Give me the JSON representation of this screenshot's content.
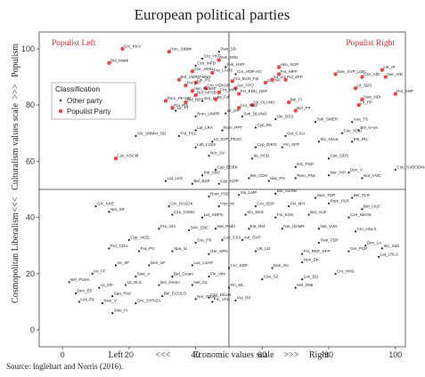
{
  "chart_data": {
    "type": "scatter",
    "title": "European political parties",
    "xlabel": {
      "left": "Left",
      "arrows_left": "<<<",
      "center": "Economic values scale",
      "arrows_right": ">>>",
      "right": "Right"
    },
    "ylabel": {
      "bottom": "Cosmopolitan Liberalism",
      "arrows_bottom": "<<<",
      "center": "Culturalism values scale",
      "arrows_top": ">>>",
      "top": "Populism"
    },
    "xlim": [
      -7,
      103
    ],
    "ylim": [
      -6,
      106
    ],
    "xticks": [
      0,
      20,
      40,
      60,
      80,
      100
    ],
    "yticks": [
      0,
      20,
      40,
      60,
      80,
      100
    ],
    "reference_lines": {
      "x": 50,
      "y": 50
    },
    "grid": false,
    "corner_labels": {
      "top_left": "Populist Left",
      "top_right": "Populist Right"
    },
    "legend": {
      "title": "Classification",
      "position": "upper-left",
      "entries": [
        "Other party",
        "Populist Party"
      ]
    },
    "colors": {
      "populist": "#e8464e",
      "other": "#222222",
      "corner_text": "#e0202a"
    },
    "source": "Source: Inglehart and Norris (2016).",
    "points": [
      {
        "x": 18,
        "y": 100,
        "label": "Grc_KKA",
        "populist": true
      },
      {
        "x": 14,
        "y": 95,
        "label": "Bel_Makk",
        "populist": true
      },
      {
        "x": 32,
        "y": 99,
        "label": "Hun_Jobbik",
        "populist": true
      },
      {
        "x": 47,
        "y": 99,
        "label": "Swe_SD",
        "populist": false
      },
      {
        "x": 42,
        "y": 96.5,
        "label": "Cro_HSS",
        "populist": false
      },
      {
        "x": 47,
        "y": 96,
        "label": "Svk_SNS",
        "populist": true
      },
      {
        "x": 40,
        "y": 94,
        "label": "Cze_MPD",
        "populist": false
      },
      {
        "x": 49,
        "y": 93.5,
        "label": "Svk_HSP",
        "populist": false
      },
      {
        "x": 39,
        "y": 92,
        "label": "Cze_ANEL",
        "populist": true
      },
      {
        "x": 45,
        "y": 91.5,
        "label": "Fra_LAOS",
        "populist": true
      },
      {
        "x": 35,
        "y": 89,
        "label": "Bel_VMRO-BND",
        "populist": true
      },
      {
        "x": 40,
        "y": 88,
        "label": "Fin_PS",
        "populist": true
      },
      {
        "x": 52,
        "y": 91,
        "label": "Cro_HDP-AG",
        "populist": false
      },
      {
        "x": 51,
        "y": 88.5,
        "label": "Fra_fnLR_FdI",
        "populist": true
      },
      {
        "x": 37,
        "y": 87,
        "label": "Pol_KP",
        "populist": true
      },
      {
        "x": 43,
        "y": 86,
        "label": "Cro_HDSSB",
        "populist": true
      },
      {
        "x": 61,
        "y": 88,
        "label": "Lat_NA",
        "populist": true
      },
      {
        "x": 52,
        "y": 86,
        "label": "Aut_FPO",
        "populist": true
      },
      {
        "x": 65,
        "y": 93.5,
        "label": "Hun_SGP",
        "populist": true
      },
      {
        "x": 65,
        "y": 91,
        "label": "Fra_MPF",
        "populist": true
      },
      {
        "x": 63,
        "y": 89,
        "label": "Ita_LN",
        "populist": true
      },
      {
        "x": 39,
        "y": 85,
        "label": "Hun_Fidesz",
        "populist": true
      },
      {
        "x": 40,
        "y": 83.5,
        "label": "Bul_NFSB",
        "populist": true
      },
      {
        "x": 47,
        "y": 84.5,
        "label": "Fra_MPF",
        "populist": true
      },
      {
        "x": 53,
        "y": 84,
        "label": "Fin_EDU_UDF",
        "populist": true
      },
      {
        "x": 67,
        "y": 89,
        "label": "Pol_ZFP",
        "populist": true
      },
      {
        "x": 82,
        "y": 91,
        "label": "Swe_SVP_UDC",
        "populist": true
      },
      {
        "x": 90,
        "y": 90,
        "label": "Cze_AfD",
        "populist": true
      },
      {
        "x": 88,
        "y": 86,
        "label": "Lit_SDS",
        "populist": true
      },
      {
        "x": 96,
        "y": 92.5,
        "label": "UK_IP",
        "populist": true
      },
      {
        "x": 97,
        "y": 90,
        "label": "Ger_AfD",
        "populist": true
      },
      {
        "x": 100,
        "y": 84,
        "label": "Pol_KNP",
        "populist": true
      },
      {
        "x": 31,
        "y": 81.5,
        "label": "Rom_PP-DD",
        "populist": true
      },
      {
        "x": 37,
        "y": 81,
        "label": "Bul_BBT",
        "populist": true
      },
      {
        "x": 33,
        "y": 79,
        "label": "Pol_PiS",
        "populist": true
      },
      {
        "x": 42,
        "y": 81.5,
        "label": "Gre_DP",
        "populist": false
      },
      {
        "x": 46,
        "y": 82,
        "label": "Ita_FdI",
        "populist": true
      },
      {
        "x": 57,
        "y": 80,
        "label": "Sk_OLANO",
        "populist": true
      },
      {
        "x": 53,
        "y": 79,
        "label": "Cro_HDZ",
        "populist": true
      },
      {
        "x": 68,
        "y": 81,
        "label": "Bel_FI",
        "populist": true
      },
      {
        "x": 70,
        "y": 78,
        "label": "Bel_PP",
        "populist": true
      },
      {
        "x": 89,
        "y": 80,
        "label": "Lit_PP",
        "populist": true
      },
      {
        "x": 90,
        "y": 82,
        "label": "Swe_NDI",
        "populist": true
      },
      {
        "x": 34,
        "y": 78,
        "label": "Lit_TT",
        "populist": false
      },
      {
        "x": 40,
        "y": 76,
        "label": "Rom_UNPR",
        "populist": false
      },
      {
        "x": 49,
        "y": 77,
        "label": "Lit_DP",
        "populist": false
      },
      {
        "x": 54,
        "y": 76,
        "label": "Svk_DLANO",
        "populist": false
      },
      {
        "x": 64,
        "y": 75,
        "label": "Slo_DSS",
        "populist": false
      },
      {
        "x": 76,
        "y": 74,
        "label": "Svk_SMER",
        "populist": false
      },
      {
        "x": 87,
        "y": 74,
        "label": "Aus_TS",
        "populist": false
      },
      {
        "x": 84,
        "y": 70,
        "label": "Cze_KDU",
        "populist": false
      },
      {
        "x": 89,
        "y": 71,
        "label": "Bel_N-VA",
        "populist": false
      },
      {
        "x": 40,
        "y": 71,
        "label": "Lat_LRA",
        "populist": false
      },
      {
        "x": 48,
        "y": 71,
        "label": "Rom_PPT",
        "populist": false
      },
      {
        "x": 58,
        "y": 72,
        "label": "Cyp_EK",
        "populist": false
      },
      {
        "x": 22,
        "y": 69,
        "label": "Slo_SNMer_SD",
        "populist": false
      },
      {
        "x": 35,
        "y": 69,
        "label": "Pol_PSL",
        "populist": false
      },
      {
        "x": 45,
        "y": 67,
        "label": "Lit_SVP_PESC",
        "populist": false
      },
      {
        "x": 67,
        "y": 69,
        "label": "Ger_CSU",
        "populist": false
      },
      {
        "x": 77,
        "y": 67,
        "label": "Slo_Nova",
        "populist": false
      },
      {
        "x": 87,
        "y": 67,
        "label": "Est_IRL",
        "populist": false
      },
      {
        "x": 40,
        "y": 65,
        "label": "Lith_LVZS",
        "populist": false
      },
      {
        "x": 58,
        "y": 65,
        "label": "Cyp_DIKO",
        "populist": false
      },
      {
        "x": 66,
        "y": 65,
        "label": "Fin_SFP",
        "populist": false
      },
      {
        "x": 80,
        "y": 61,
        "label": "Cze_ODS",
        "populist": false
      },
      {
        "x": 16,
        "y": 61,
        "label": "Cze_KSCM",
        "populist": true
      },
      {
        "x": 44,
        "y": 62,
        "label": "Nor_SV",
        "populist": false
      },
      {
        "x": 57,
        "y": 61,
        "label": "Ita_NCD",
        "populist": false
      },
      {
        "x": 70,
        "y": 58,
        "label": "Est_PSD",
        "populist": false
      },
      {
        "x": 46,
        "y": 57,
        "label": "Cyp_EDEK",
        "populist": false
      },
      {
        "x": 42,
        "y": 55,
        "label": "Pol_ABV",
        "populist": false
      },
      {
        "x": 31,
        "y": 53,
        "label": "Lat_LKS",
        "populist": false
      },
      {
        "x": 39,
        "y": 52,
        "label": "Bel_BSP",
        "populist": false
      },
      {
        "x": 47,
        "y": 52,
        "label": "Cyp_KOP",
        "populist": false
      },
      {
        "x": 56,
        "y": 54,
        "label": "Bel_CDH",
        "populist": false
      },
      {
        "x": 62,
        "y": 53,
        "label": "Mal_PN",
        "populist": false
      },
      {
        "x": 70,
        "y": 54,
        "label": "Rom_PNL",
        "populist": false
      },
      {
        "x": 80,
        "y": 55,
        "label": "Nor_FrP",
        "populist": false
      },
      {
        "x": 86,
        "y": 56,
        "label": "Den_V",
        "populist": false
      },
      {
        "x": 90,
        "y": 54,
        "label": "Nor_VVD",
        "populist": false
      },
      {
        "x": 100,
        "y": 57,
        "label": "Cze_SVBODNI",
        "populist": false
      },
      {
        "x": 44,
        "y": 47.5,
        "label": "Rom_PSD",
        "populist": false
      },
      {
        "x": 53,
        "y": 48,
        "label": "Slo_LMP",
        "populist": false
      },
      {
        "x": 64,
        "y": 48.5,
        "label": "Bul_GERB",
        "populist": false
      },
      {
        "x": 76,
        "y": 47,
        "label": "Swe_TOP",
        "populist": false
      },
      {
        "x": 87,
        "y": 47,
        "label": "Bel_PLR",
        "populist": false
      },
      {
        "x": 10,
        "y": 44,
        "label": "Grc_KKE",
        "populist": false
      },
      {
        "x": 32,
        "y": 44,
        "label": "Grc_PASOK",
        "populist": false
      },
      {
        "x": 47,
        "y": 44,
        "label": "Hun_Nr",
        "populist": false
      },
      {
        "x": 58,
        "y": 44,
        "label": "Cro_SDP",
        "populist": false
      },
      {
        "x": 68,
        "y": 44,
        "label": "Fin_MH",
        "populist": false
      },
      {
        "x": 80,
        "y": 45,
        "label": "Rom_PLR",
        "populist": false
      },
      {
        "x": 90,
        "y": 43,
        "label": "Bel_OLD",
        "populist": false
      },
      {
        "x": 14,
        "y": 42,
        "label": "Net_SP",
        "populist": false
      },
      {
        "x": 33,
        "y": 41,
        "label": "Cze_CSSD",
        "populist": false
      },
      {
        "x": 42,
        "y": 40,
        "label": "Lat_SDPS",
        "populist": false
      },
      {
        "x": 55,
        "y": 41,
        "label": "Slo_SDS",
        "populist": false
      },
      {
        "x": 64,
        "y": 40,
        "label": "Fin_KOK",
        "populist": false
      },
      {
        "x": 74,
        "y": 41,
        "label": "Bel_VLD",
        "populist": false
      },
      {
        "x": 86,
        "y": 40,
        "label": "Cze_NEOS",
        "populist": false
      },
      {
        "x": 29,
        "y": 36,
        "label": "Fra_Grn",
        "populist": false
      },
      {
        "x": 38,
        "y": 35.5,
        "label": "SPA_EBC",
        "populist": false
      },
      {
        "x": 46,
        "y": 36,
        "label": "Net_PvdA",
        "populist": false
      },
      {
        "x": 56,
        "y": 36,
        "label": "Est_Ref",
        "populist": false
      },
      {
        "x": 66,
        "y": 36,
        "label": "Net_UDMR",
        "populist": false
      },
      {
        "x": 77,
        "y": 36,
        "label": "Net_VVD",
        "populist": false
      },
      {
        "x": 88,
        "y": 35,
        "label": "Cro_HSLS",
        "populist": false
      },
      {
        "x": 20,
        "y": 32,
        "label": "Cyp_AKEL",
        "populist": false
      },
      {
        "x": 40,
        "y": 31,
        "label": "Gre_PS",
        "populist": false
      },
      {
        "x": 48,
        "y": 32,
        "label": "Lux_CSV",
        "populist": false
      },
      {
        "x": 54,
        "y": 32,
        "label": "Aut_OVP",
        "populist": false
      },
      {
        "x": 77,
        "y": 31,
        "label": "Swe_FDP",
        "populist": false
      },
      {
        "x": 91,
        "y": 30,
        "label": "Den_LA",
        "populist": false
      },
      {
        "x": 96,
        "y": 29,
        "label": "Slo_SaS",
        "populist": false
      },
      {
        "x": 14,
        "y": 29,
        "label": "Por_CDU",
        "populist": false
      },
      {
        "x": 23,
        "y": 28,
        "label": "Fra_PG",
        "populist": false
      },
      {
        "x": 33,
        "y": 28,
        "label": "Spa_IU",
        "populist": false
      },
      {
        "x": 44,
        "y": 27,
        "label": "Ger_SPD",
        "populist": false
      },
      {
        "x": 58,
        "y": 28,
        "label": "UK_LD",
        "populist": false
      },
      {
        "x": 72,
        "y": 27,
        "label": "Fin_RKP_SFP",
        "populist": false
      },
      {
        "x": 86,
        "y": 28,
        "label": "Ger_FDP",
        "populist": false
      },
      {
        "x": 95,
        "y": 26,
        "label": "Lat_LRLS",
        "populist": false
      },
      {
        "x": 16,
        "y": 23,
        "label": "Ire_SF",
        "populist": false
      },
      {
        "x": 26,
        "y": 23,
        "label": "Den_SF",
        "populist": false
      },
      {
        "x": 39,
        "y": 23,
        "label": "Lux_LSAP",
        "populist": false
      },
      {
        "x": 50,
        "y": 22,
        "label": "Cro_SDP",
        "populist": false
      },
      {
        "x": 63,
        "y": 22,
        "label": "Den_RV",
        "populist": false
      },
      {
        "x": 72,
        "y": 24,
        "label": "Hun_DK",
        "populist": false
      },
      {
        "x": 9,
        "y": 20,
        "label": "Ire_FF",
        "populist": false
      },
      {
        "x": 22,
        "y": 19,
        "label": "Swe_V",
        "populist": false
      },
      {
        "x": 33,
        "y": 19,
        "label": "Bel_Groen",
        "populist": false
      },
      {
        "x": 44,
        "y": 19,
        "label": "Fin_Vihr",
        "populist": false
      },
      {
        "x": 60,
        "y": 18,
        "label": "Cze_SZ",
        "populist": false
      },
      {
        "x": 72,
        "y": 18,
        "label": "Lux_DG",
        "populist": false
      },
      {
        "x": 82,
        "y": 20,
        "label": "Cro_HNS",
        "populist": false
      },
      {
        "x": 2,
        "y": 17,
        "label": "Bel_PVDA",
        "populist": false
      },
      {
        "x": 11,
        "y": 15,
        "label": "Lit_DP",
        "populist": false
      },
      {
        "x": 19,
        "y": 16,
        "label": "Lit_SLS",
        "populist": false
      },
      {
        "x": 29,
        "y": 16,
        "label": "Bel_Green",
        "populist": false
      },
      {
        "x": 39,
        "y": 16,
        "label": "Net_GL",
        "populist": false
      },
      {
        "x": 50,
        "y": 15,
        "label": "Fin_ML",
        "populist": false
      },
      {
        "x": 70,
        "y": 15,
        "label": "Net_D66",
        "populist": false
      },
      {
        "x": 4,
        "y": 13,
        "label": "Den_Ell",
        "populist": false
      },
      {
        "x": 15,
        "y": 12,
        "label": "Spa_Pod",
        "populist": false
      },
      {
        "x": 30,
        "y": 12,
        "label": "Bel_ECOLO",
        "populist": false
      },
      {
        "x": 40,
        "y": 11,
        "label": "Nor_Grunn",
        "populist": false
      },
      {
        "x": 44,
        "y": 11.5,
        "label": "Cze_DKuH",
        "populist": false
      },
      {
        "x": 45,
        "y": 10,
        "label": "Fin_VAS",
        "populist": false
      },
      {
        "x": 5,
        "y": 10,
        "label": "Lux_DL",
        "populist": false
      },
      {
        "x": 12,
        "y": 9.5,
        "label": "Swe_V",
        "populist": false
      },
      {
        "x": 22,
        "y": 9.5,
        "label": "Gre_SYRIZA",
        "populist": false
      },
      {
        "x": 15,
        "y": 6,
        "label": "Swe_Fi",
        "populist": false
      },
      {
        "x": 52,
        "y": 10.5,
        "label": "Pol_RP",
        "populist": false
      }
    ]
  }
}
